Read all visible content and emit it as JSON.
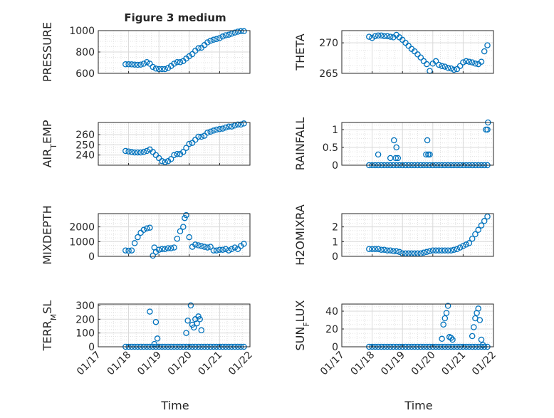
{
  "figure_title": "Figure 3 medium",
  "xlabel": "Time",
  "xticks": [
    "01/17",
    "01/18",
    "01/19",
    "01/20",
    "01/21",
    "01/22"
  ],
  "marker_color": "#0072bd",
  "chart_data": [
    {
      "type": "scatter",
      "ylabel": "PRESSURE",
      "ylim": [
        600,
        1000
      ],
      "yticks": [
        600,
        800,
        1000
      ],
      "ytick_labels": [
        "600",
        "800",
        "1000"
      ],
      "x": [
        17.9,
        18.0,
        18.1,
        18.2,
        18.3,
        18.4,
        18.5,
        18.6,
        18.7,
        18.8,
        18.9,
        19.0,
        19.1,
        19.2,
        19.3,
        19.4,
        19.5,
        19.6,
        19.7,
        19.8,
        19.9,
        20.0,
        20.1,
        20.2,
        20.3,
        20.4,
        20.5,
        20.6,
        20.7,
        20.8,
        20.9,
        21.0,
        21.1,
        21.2,
        21.3,
        21.4,
        21.5,
        21.6,
        21.7,
        21.8
      ],
      "y": [
        685,
        685,
        684,
        682,
        680,
        682,
        690,
        705,
        690,
        660,
        645,
        640,
        640,
        640,
        650,
        668,
        690,
        705,
        705,
        715,
        738,
        760,
        780,
        812,
        835,
        840,
        865,
        890,
        905,
        915,
        922,
        930,
        945,
        956,
        962,
        972,
        982,
        990,
        995,
        995
      ]
    },
    {
      "type": "scatter",
      "ylabel": "THETA",
      "ylim": [
        265,
        272
      ],
      "yticks": [
        265,
        270
      ],
      "ytick_labels": [
        "265",
        "270"
      ],
      "x": [
        17.9,
        18.0,
        18.1,
        18.2,
        18.3,
        18.4,
        18.5,
        18.6,
        18.7,
        18.8,
        18.9,
        19.0,
        19.1,
        19.2,
        19.3,
        19.4,
        19.5,
        19.6,
        19.7,
        19.8,
        19.9,
        20.0,
        20.1,
        20.2,
        20.3,
        20.4,
        20.5,
        20.6,
        20.7,
        20.8,
        20.9,
        21.0,
        21.1,
        21.2,
        21.3,
        21.4,
        21.5,
        21.6,
        21.7,
        21.8
      ],
      "y": [
        271,
        270.8,
        271.1,
        271.2,
        271.2,
        271.1,
        271.1,
        271.0,
        270.9,
        271.3,
        270.9,
        270.5,
        270,
        269.5,
        269.0,
        268.6,
        268.1,
        267.6,
        267.0,
        266.5,
        265.4,
        266.6,
        267.0,
        266.4,
        266.2,
        266.1,
        265.9,
        265.8,
        265.6,
        265.7,
        266.2,
        266.8,
        267.0,
        266.9,
        266.8,
        266.6,
        266.5,
        266.9,
        268.6,
        269.6
      ]
    },
    {
      "type": "scatter",
      "ylabel": "AIR_TEMP",
      "ylim": [
        230,
        272
      ],
      "yticks": [
        240,
        250,
        260
      ],
      "ytick_labels": [
        "240",
        "250",
        "260"
      ],
      "x": [
        17.9,
        18.0,
        18.1,
        18.2,
        18.3,
        18.4,
        18.5,
        18.6,
        18.7,
        18.8,
        18.9,
        19.0,
        19.1,
        19.2,
        19.3,
        19.4,
        19.5,
        19.6,
        19.7,
        19.8,
        19.9,
        20.0,
        20.1,
        20.2,
        20.3,
        20.4,
        20.5,
        20.6,
        20.7,
        20.8,
        20.9,
        21.0,
        21.1,
        21.2,
        21.3,
        21.4,
        21.5,
        21.6,
        21.7,
        21.8
      ],
      "y": [
        244,
        243.5,
        243,
        242.5,
        242.5,
        242.5,
        243,
        244,
        245.5,
        243,
        240,
        237,
        234,
        233,
        234,
        236,
        240,
        241,
        241,
        243,
        247,
        251,
        252,
        255,
        258,
        258,
        259,
        262,
        263,
        264,
        265,
        265.5,
        266,
        267,
        268,
        268,
        269,
        270,
        270,
        271
      ]
    },
    {
      "type": "scatter",
      "ylabel": "RAINFALL",
      "ylim": [
        0,
        1.2
      ],
      "yticks": [
        0,
        0.5,
        1
      ],
      "ytick_labels": [
        "0",
        "0.5",
        "1"
      ],
      "x": [
        17.9,
        18.0,
        18.1,
        18.2,
        18.3,
        18.4,
        18.5,
        18.6,
        18.7,
        18.8,
        18.9,
        19.0,
        19.1,
        19.2,
        19.3,
        19.4,
        19.5,
        19.6,
        19.7,
        19.8,
        19.9,
        20.0,
        20.1,
        20.2,
        20.3,
        20.4,
        20.5,
        20.6,
        20.7,
        20.8,
        20.9,
        21.0,
        21.1,
        21.2,
        21.3,
        21.4,
        21.5,
        21.6,
        21.7,
        21.8,
        18.2,
        18.6,
        18.72,
        18.8,
        18.78,
        18.85,
        19.78,
        19.82,
        19.85,
        19.9,
        21.75,
        21.8,
        21.82
      ],
      "y": [
        0,
        0,
        0,
        0,
        0,
        0,
        0,
        0,
        0,
        0,
        0,
        0,
        0,
        0,
        0,
        0,
        0,
        0,
        0,
        0,
        0,
        0,
        0,
        0,
        0,
        0,
        0,
        0,
        0,
        0,
        0,
        0,
        0,
        0,
        0,
        0,
        0,
        0,
        0,
        0,
        0.3,
        0.2,
        0.7,
        0.5,
        0.2,
        0.2,
        0.3,
        0.7,
        0.3,
        0.3,
        1.0,
        1.0,
        1.2
      ]
    },
    {
      "type": "scatter",
      "ylabel": "MIXDEPTH",
      "ylim": [
        0,
        2900
      ],
      "yticks": [
        0,
        1000,
        2000
      ],
      "ytick_labels": [
        "0",
        "1000",
        "2000"
      ],
      "x": [
        17.9,
        18.0,
        18.1,
        18.2,
        18.3,
        18.4,
        18.5,
        18.6,
        18.7,
        18.8,
        18.85,
        18.9,
        19.0,
        19.1,
        19.2,
        19.3,
        19.4,
        19.5,
        19.6,
        19.7,
        19.8,
        19.85,
        19.9,
        20.0,
        20.1,
        20.2,
        20.3,
        20.4,
        20.5,
        20.6,
        20.7,
        20.8,
        20.9,
        21.0,
        21.1,
        21.2,
        21.3,
        21.4,
        21.5,
        21.6,
        21.7,
        21.8
      ],
      "y": [
        400,
        380,
        400,
        900,
        1300,
        1600,
        1800,
        1900,
        1950,
        50,
        600,
        300,
        450,
        500,
        500,
        550,
        550,
        600,
        1200,
        1700,
        2000,
        2600,
        2800,
        1300,
        650,
        800,
        750,
        700,
        650,
        600,
        650,
        400,
        400,
        450,
        450,
        500,
        400,
        500,
        600,
        500,
        700,
        850
      ]
    },
    {
      "type": "scatter",
      "ylabel": "H2OMIXRA",
      "ylim": [
        0,
        2.9
      ],
      "yticks": [
        0,
        1,
        2
      ],
      "ytick_labels": [
        "0",
        "1",
        "2"
      ],
      "x": [
        17.9,
        18.0,
        18.1,
        18.2,
        18.3,
        18.4,
        18.5,
        18.6,
        18.7,
        18.8,
        18.9,
        19.0,
        19.1,
        19.2,
        19.3,
        19.4,
        19.5,
        19.6,
        19.7,
        19.8,
        19.9,
        20.0,
        20.1,
        20.2,
        20.3,
        20.4,
        20.5,
        20.6,
        20.7,
        20.8,
        20.9,
        21.0,
        21.1,
        21.2,
        21.3,
        21.4,
        21.5,
        21.6,
        21.7,
        21.8
      ],
      "y": [
        0.5,
        0.5,
        0.5,
        0.5,
        0.45,
        0.45,
        0.4,
        0.4,
        0.35,
        0.35,
        0.3,
        0.2,
        0.2,
        0.2,
        0.2,
        0.2,
        0.2,
        0.2,
        0.25,
        0.3,
        0.35,
        0.4,
        0.4,
        0.4,
        0.4,
        0.4,
        0.4,
        0.4,
        0.45,
        0.5,
        0.6,
        0.7,
        0.8,
        0.9,
        1.2,
        1.5,
        1.8,
        2.1,
        2.4,
        2.7
      ]
    },
    {
      "type": "scatter",
      "ylabel": "TERR_MSL",
      "ylim": [
        0,
        310
      ],
      "yticks": [
        0,
        100,
        200,
        300
      ],
      "ytick_labels": [
        "0",
        "100",
        "200",
        "300"
      ],
      "x": [
        17.9,
        18.0,
        18.1,
        18.2,
        18.3,
        18.4,
        18.5,
        18.6,
        18.7,
        18.8,
        18.9,
        19.0,
        19.1,
        19.2,
        19.3,
        19.4,
        19.5,
        19.6,
        19.7,
        19.8,
        19.9,
        20.0,
        20.1,
        20.2,
        20.3,
        20.4,
        20.5,
        20.6,
        20.7,
        20.8,
        20.9,
        21.0,
        21.1,
        21.2,
        21.3,
        21.4,
        21.5,
        21.6,
        21.7,
        21.8,
        18.7,
        18.85,
        18.9,
        18.95,
        19.9,
        19.95,
        20.05,
        20.1,
        20.15,
        20.2,
        20.25,
        20.3,
        20.35,
        20.4
      ],
      "y": [
        0,
        0,
        0,
        0,
        0,
        0,
        0,
        0,
        0,
        0,
        0,
        0,
        0,
        0,
        0,
        0,
        0,
        0,
        0,
        0,
        0,
        0,
        0,
        0,
        0,
        0,
        0,
        0,
        0,
        0,
        0,
        0,
        0,
        0,
        0,
        0,
        0,
        0,
        0,
        0,
        255,
        20,
        180,
        60,
        100,
        190,
        300,
        160,
        140,
        200,
        170,
        220,
        200,
        120
      ]
    },
    {
      "type": "scatter",
      "ylabel": "SUN_FLUX",
      "ylim": [
        0,
        48
      ],
      "yticks": [
        0,
        20,
        40
      ],
      "ytick_labels": [
        "0",
        "20",
        "40"
      ],
      "x": [
        17.9,
        18.0,
        18.1,
        18.2,
        18.3,
        18.4,
        18.5,
        18.6,
        18.7,
        18.8,
        18.9,
        19.0,
        19.1,
        19.2,
        19.3,
        19.4,
        19.5,
        19.6,
        19.7,
        19.8,
        19.9,
        20.0,
        20.1,
        20.2,
        20.3,
        20.4,
        20.5,
        20.6,
        20.7,
        20.8,
        20.9,
        21.0,
        21.1,
        21.2,
        21.3,
        21.4,
        21.5,
        21.6,
        21.7,
        21.8,
        20.3,
        20.35,
        20.4,
        20.45,
        20.5,
        20.55,
        20.6,
        20.65,
        21.3,
        21.35,
        21.4,
        21.45,
        21.5,
        21.55,
        21.6,
        21.65
      ],
      "y": [
        0,
        0,
        0,
        0,
        0,
        0,
        0,
        0,
        0,
        0,
        0,
        0,
        0,
        0,
        0,
        0,
        0,
        0,
        0,
        0,
        0,
        0,
        0,
        0,
        0,
        0,
        0,
        0,
        0,
        0,
        0,
        0,
        0,
        0,
        0,
        0,
        0,
        0,
        0,
        0,
        9,
        25,
        32,
        38,
        46,
        11,
        10,
        8,
        12,
        22,
        32,
        38,
        43,
        30,
        8,
        2
      ]
    }
  ]
}
